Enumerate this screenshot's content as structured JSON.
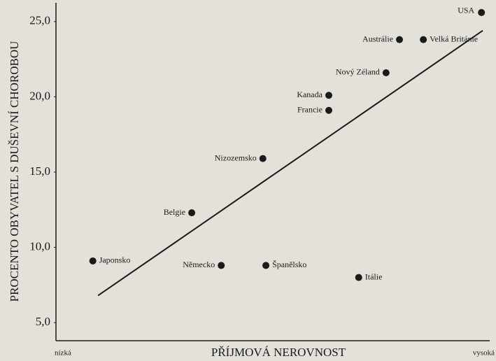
{
  "chart_data": {
    "type": "scatter",
    "y_label": "PROCENTO OBYVATEL S DUŠEVNÍ CHOROBOU",
    "x_label": "PŘÍJMOVÁ NEROVNOST",
    "x_end_labels": [
      "nízká",
      "vysoká"
    ],
    "labels": [
      "USA",
      "Austrálie",
      "Velká Británie",
      "Nový Zéland",
      "Kanada",
      "Francie",
      "Nizozemsko",
      "Belgie",
      "Japonsko",
      "Německo",
      "Španělsko",
      "Itálie"
    ],
    "x": [
      98.1,
      79.2,
      84.7,
      76.1,
      62.9,
      62.9,
      47.7,
      31.3,
      8.5,
      38.1,
      48.4,
      69.8
    ],
    "values": [
      25.6,
      23.8,
      23.8,
      21.6,
      20.1,
      19.1,
      15.9,
      12.3,
      9.1,
      8.8,
      8.8,
      8.0
    ],
    "color": "#1a1a1a",
    "trendline": {
      "x": [
        9.7,
        98.4
      ],
      "y": [
        6.8,
        24.4
      ]
    },
    "xlim": [
      0,
      100
    ],
    "ylim": [
      3.8,
      26.2
    ],
    "yticks": [
      {
        "value": 5,
        "label": "5,0"
      },
      {
        "value": 10,
        "label": "10,0"
      },
      {
        "value": 15,
        "label": "15,0"
      },
      {
        "value": 20,
        "label": "20,0"
      },
      {
        "value": 25,
        "label": "25,0"
      }
    ]
  }
}
